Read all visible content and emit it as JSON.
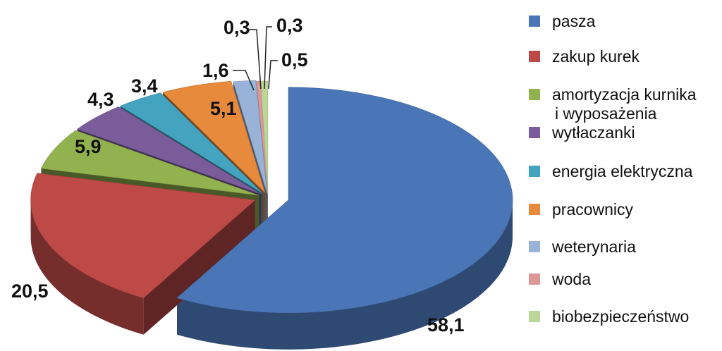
{
  "chart_data": {
    "type": "pie",
    "style": "3d-exploded",
    "legend_position": "right",
    "categories": [
      "pasza",
      "zakup kurek",
      "amortyzacja kurnika i wyposażenia",
      "wytłaczanki",
      "energia elektryczna",
      "pracownicy",
      "weterynaria",
      "woda",
      "biobezpieczeństwo"
    ],
    "legend_lines": [
      [
        "pasza"
      ],
      [
        "zakup kurek"
      ],
      [
        "amortyzacja kurnika",
        "i wyposażenia"
      ],
      [
        "wytłaczanki"
      ],
      [
        "energia elektryczna"
      ],
      [
        "pracownicy"
      ],
      [
        "weterynaria"
      ],
      [
        "woda"
      ],
      [
        "biobezpieczeństwo"
      ]
    ],
    "values": [
      58.1,
      20.5,
      5.9,
      4.3,
      3.4,
      5.1,
      1.6,
      0.3,
      0.5
    ],
    "value_labels": [
      "58,1",
      "20,5",
      "5,9",
      "4,3",
      "3,4",
      "5,1",
      "1,6",
      "0,3",
      "0,5"
    ],
    "extra_labels": [
      "0,3"
    ],
    "colors": [
      "#4a76b8",
      "#bd4a47",
      "#92b24f",
      "#7a5c9b",
      "#44a4bf",
      "#e88a3b",
      "#98b2d8",
      "#dc9897",
      "#bcd69a"
    ]
  }
}
